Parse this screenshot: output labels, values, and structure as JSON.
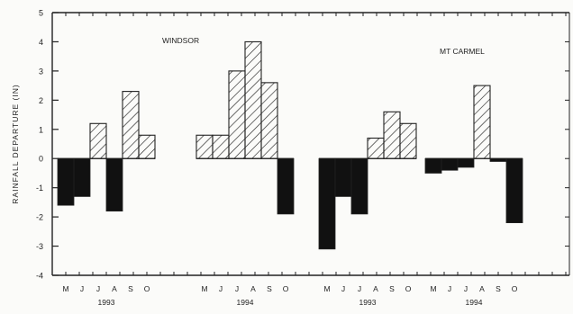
{
  "chart_data": {
    "type": "bar",
    "title": "",
    "xlabel": "",
    "ylabel": "RAINFALL DEPARTURE (IN)",
    "ylim": [
      -4,
      5
    ],
    "yticks": [
      "-4",
      "-3",
      "-2",
      "-1",
      "0",
      "1",
      "2",
      "3",
      "4",
      "5"
    ],
    "grid": false,
    "legend": "none",
    "colors": {
      "positive_hatch": "#222222",
      "negative_fill": "#111111",
      "axis": "#222222"
    },
    "annotations": [
      "WINDSOR",
      "MT CARMEL"
    ],
    "groups": [
      {
        "station": "WINDSOR",
        "year": "1993",
        "months": [
          "M",
          "J",
          "J",
          "A",
          "S",
          "O"
        ],
        "values": [
          -1.6,
          -1.3,
          1.2,
          -1.8,
          2.3,
          0.8
        ]
      },
      {
        "station": "WINDSOR",
        "year": "1994",
        "months": [
          "M",
          "J",
          "J",
          "A",
          "S",
          "O"
        ],
        "values": [
          0.8,
          0.8,
          3.0,
          4.0,
          2.6,
          -1.9
        ]
      },
      {
        "station": "MT CARMEL",
        "year": "1993",
        "months": [
          "M",
          "J",
          "J",
          "A",
          "S",
          "O"
        ],
        "values": [
          -3.1,
          -1.3,
          -1.9,
          0.7,
          1.6,
          1.2
        ]
      },
      {
        "station": "MT CARMEL",
        "year": "1994",
        "months": [
          "M",
          "J",
          "J",
          "A",
          "S",
          "O"
        ],
        "values": [
          -0.5,
          -0.4,
          -0.3,
          2.5,
          -0.1,
          -2.2
        ]
      }
    ]
  }
}
